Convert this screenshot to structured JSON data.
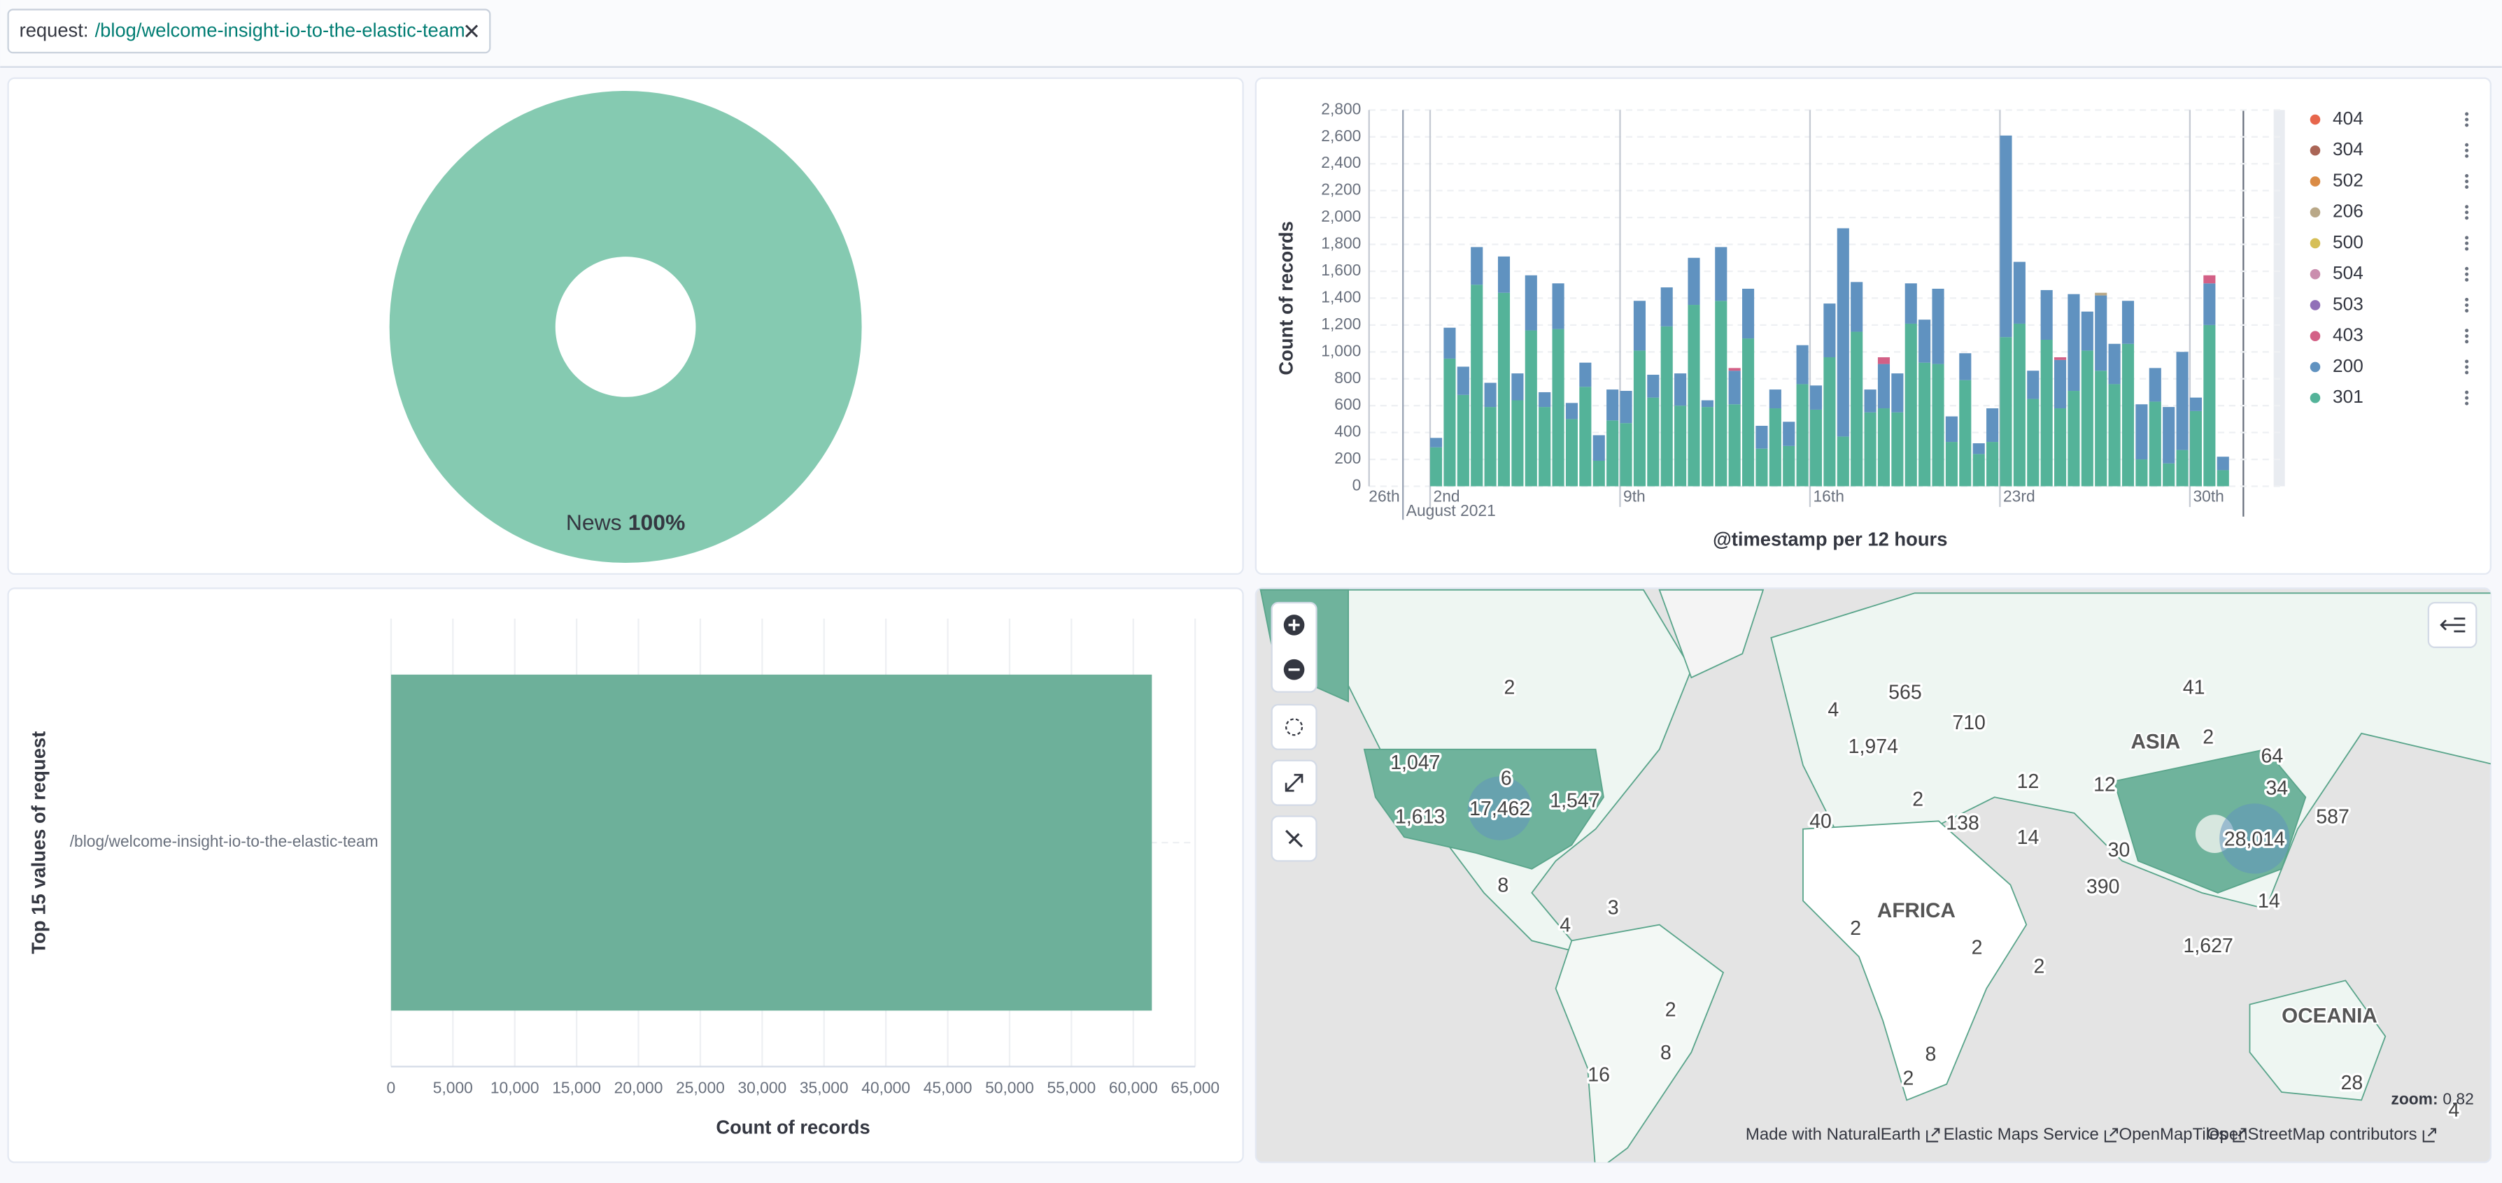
{
  "filter": {
    "field": "request:",
    "value": "/blog/welcome-insight-io-to-the-elastic-team"
  },
  "chart_data": [
    {
      "type": "pie",
      "categories": [
        "News"
      ],
      "values": [
        100
      ],
      "value_labels": [
        "100%"
      ],
      "colors": [
        "#85cab1"
      ]
    },
    {
      "type": "bar",
      "stacked": true,
      "x": [
        "2021-08-02T00:00",
        "2021-08-02T12:00",
        "2021-08-03T00:00",
        "2021-08-03T12:00",
        "2021-08-04T00:00",
        "2021-08-04T12:00",
        "2021-08-05T00:00",
        "2021-08-05T12:00",
        "2021-08-06T00:00",
        "2021-08-06T12:00",
        "2021-08-07T00:00",
        "2021-08-07T12:00",
        "2021-08-08T00:00",
        "2021-08-08T12:00",
        "2021-08-09T00:00",
        "2021-08-09T12:00",
        "2021-08-10T00:00",
        "2021-08-10T12:00",
        "2021-08-11T00:00",
        "2021-08-11T12:00",
        "2021-08-12T00:00",
        "2021-08-12T12:00",
        "2021-08-13T00:00",
        "2021-08-13T12:00",
        "2021-08-14T00:00",
        "2021-08-14T12:00",
        "2021-08-15T00:00",
        "2021-08-15T12:00",
        "2021-08-16T00:00",
        "2021-08-16T12:00",
        "2021-08-17T00:00",
        "2021-08-17T12:00",
        "2021-08-18T00:00",
        "2021-08-18T12:00",
        "2021-08-19T00:00",
        "2021-08-19T12:00",
        "2021-08-20T00:00",
        "2021-08-20T12:00",
        "2021-08-21T00:00",
        "2021-08-21T12:00",
        "2021-08-22T00:00",
        "2021-08-22T12:00",
        "2021-08-23T00:00",
        "2021-08-23T12:00",
        "2021-08-24T00:00",
        "2021-08-24T12:00",
        "2021-08-25T00:00",
        "2021-08-25T12:00",
        "2021-08-26T00:00",
        "2021-08-26T12:00",
        "2021-08-27T00:00",
        "2021-08-27T12:00",
        "2021-08-28T00:00",
        "2021-08-28T12:00",
        "2021-08-29T00:00",
        "2021-08-29T12:00",
        "2021-08-30T00:00",
        "2021-08-30T12:00",
        "2021-08-31T00:00"
      ],
      "xlim": [
        "2021-07-30T18:00",
        "2021-09-02T12:00"
      ],
      "xticks": [
        {
          "value": "2021-08-02",
          "label": "2nd"
        },
        {
          "value": "2021-08-09",
          "label": "9th"
        },
        {
          "value": "2021-08-16",
          "label": "16th"
        },
        {
          "value": "2021-08-23",
          "label": "23rd"
        },
        {
          "value": "2021-08-30",
          "label": "30th"
        }
      ],
      "x_month_label": {
        "value": "2021-08-01",
        "label": "August 2021"
      },
      "x_edge_label": "26th",
      "ylim": [
        0,
        2800
      ],
      "yticks": [
        0,
        200,
        400,
        600,
        800,
        {
          "value": 1000,
          "label": "1,000"
        },
        {
          "value": 1200,
          "label": "1,200"
        },
        {
          "value": 1400,
          "label": "1,400"
        },
        {
          "value": 1600,
          "label": "1,600"
        },
        {
          "value": 1800,
          "label": "1,800"
        },
        {
          "value": 2000,
          "label": "2,000"
        },
        {
          "value": 2200,
          "label": "2,200"
        },
        {
          "value": 2400,
          "label": "2,400"
        },
        {
          "value": 2600,
          "label": "2,600"
        },
        {
          "value": 2800,
          "label": "2,800"
        }
      ],
      "xlabel": "@timestamp per 12 hours",
      "ylabel": "Count of records",
      "grid": true,
      "legend": "right",
      "series": [
        {
          "name": "404",
          "color": "#e7664c",
          "values": [
            0,
            0,
            0,
            0,
            0,
            0,
            0,
            0,
            0,
            0,
            0,
            0,
            0,
            0,
            0,
            0,
            0,
            0,
            0,
            0,
            0,
            0,
            0,
            0,
            0,
            0,
            0,
            0,
            0,
            0,
            0,
            0,
            0,
            0,
            0,
            0,
            0,
            0,
            0,
            0,
            0,
            0,
            0,
            0,
            0,
            0,
            0,
            0,
            0,
            0,
            0,
            0,
            0,
            0,
            0,
            0,
            0,
            0,
            0
          ]
        },
        {
          "name": "304",
          "color": "#aa6556",
          "values": [
            0,
            0,
            0,
            0,
            0,
            0,
            0,
            0,
            0,
            0,
            0,
            0,
            0,
            0,
            0,
            0,
            0,
            0,
            0,
            0,
            0,
            0,
            0,
            0,
            0,
            0,
            0,
            0,
            0,
            0,
            0,
            0,
            0,
            0,
            0,
            0,
            0,
            0,
            0,
            0,
            0,
            0,
            0,
            0,
            0,
            0,
            0,
            0,
            0,
            0,
            0,
            0,
            0,
            0,
            0,
            0,
            0,
            0,
            0
          ]
        },
        {
          "name": "502",
          "color": "#da8b45",
          "values": [
            0,
            0,
            0,
            0,
            0,
            0,
            0,
            0,
            0,
            0,
            0,
            0,
            0,
            0,
            0,
            0,
            0,
            0,
            0,
            0,
            0,
            0,
            0,
            0,
            0,
            0,
            0,
            0,
            0,
            0,
            0,
            0,
            0,
            0,
            0,
            0,
            0,
            0,
            0,
            0,
            0,
            0,
            0,
            0,
            0,
            0,
            0,
            0,
            0,
            0,
            0,
            0,
            0,
            0,
            0,
            0,
            0,
            0,
            0
          ]
        },
        {
          "name": "206",
          "color": "#b9a888",
          "values": [
            0,
            0,
            0,
            0,
            0,
            0,
            0,
            0,
            0,
            0,
            0,
            0,
            0,
            0,
            0,
            0,
            0,
            0,
            0,
            0,
            0,
            0,
            0,
            0,
            0,
            0,
            0,
            0,
            0,
            0,
            0,
            0,
            0,
            0,
            0,
            0,
            0,
            0,
            0,
            0,
            0,
            0,
            0,
            0,
            0,
            0,
            0,
            0,
            0,
            20,
            0,
            0,
            0,
            0,
            0,
            0,
            0,
            0,
            0
          ]
        },
        {
          "name": "500",
          "color": "#d6bf57",
          "values": [
            0,
            0,
            0,
            0,
            0,
            0,
            0,
            0,
            0,
            0,
            0,
            0,
            0,
            0,
            0,
            0,
            0,
            0,
            0,
            0,
            0,
            0,
            0,
            0,
            0,
            0,
            0,
            0,
            0,
            0,
            0,
            0,
            0,
            0,
            0,
            0,
            0,
            0,
            0,
            0,
            0,
            0,
            0,
            0,
            0,
            0,
            0,
            0,
            0,
            0,
            0,
            0,
            0,
            0,
            0,
            0,
            0,
            0,
            0
          ]
        },
        {
          "name": "504",
          "color": "#ca8eae",
          "values": [
            0,
            0,
            0,
            0,
            0,
            0,
            0,
            0,
            0,
            0,
            0,
            0,
            0,
            0,
            0,
            0,
            0,
            0,
            0,
            0,
            0,
            0,
            0,
            0,
            0,
            0,
            0,
            0,
            0,
            0,
            0,
            0,
            0,
            0,
            0,
            0,
            0,
            0,
            0,
            0,
            0,
            0,
            0,
            0,
            0,
            0,
            0,
            0,
            0,
            0,
            0,
            0,
            0,
            0,
            0,
            0,
            0,
            0,
            0
          ]
        },
        {
          "name": "503",
          "color": "#9170b8",
          "values": [
            0,
            0,
            0,
            0,
            0,
            0,
            0,
            0,
            0,
            0,
            0,
            0,
            0,
            0,
            0,
            0,
            0,
            0,
            0,
            0,
            0,
            0,
            0,
            0,
            0,
            0,
            0,
            0,
            0,
            0,
            0,
            0,
            0,
            0,
            0,
            0,
            0,
            0,
            0,
            0,
            0,
            0,
            0,
            0,
            0,
            0,
            0,
            0,
            0,
            0,
            0,
            0,
            0,
            0,
            0,
            0,
            0,
            0,
            0
          ]
        },
        {
          "name": "403",
          "color": "#d36086",
          "values": [
            0,
            0,
            0,
            0,
            0,
            0,
            0,
            0,
            0,
            0,
            0,
            0,
            0,
            0,
            0,
            0,
            0,
            0,
            0,
            0,
            0,
            0,
            20,
            0,
            0,
            0,
            0,
            0,
            0,
            0,
            0,
            0,
            0,
            50,
            0,
            0,
            0,
            0,
            0,
            0,
            0,
            0,
            0,
            0,
            0,
            0,
            20,
            0,
            0,
            0,
            0,
            0,
            0,
            0,
            0,
            0,
            0,
            60,
            0
          ]
        },
        {
          "name": "200",
          "color": "#6092c0",
          "values": [
            70,
            230,
            210,
            280,
            180,
            270,
            200,
            410,
            110,
            340,
            120,
            180,
            190,
            230,
            240,
            370,
            170,
            290,
            240,
            350,
            50,
            400,
            250,
            370,
            170,
            140,
            180,
            290,
            180,
            400,
            1550,
            370,
            170,
            330,
            290,
            300,
            320,
            560,
            190,
            200,
            80,
            250,
            1500,
            460,
            210,
            370,
            360,
            720,
            290,
            560,
            300,
            320,
            410,
            250,
            420,
            730,
            100,
            310,
            100
          ]
        },
        {
          "name": "301",
          "color": "#54b399",
          "values": [
            290,
            950,
            680,
            1500,
            590,
            1440,
            640,
            1160,
            590,
            1170,
            500,
            740,
            190,
            490,
            470,
            1010,
            660,
            1190,
            600,
            1350,
            590,
            1380,
            610,
            1100,
            280,
            580,
            300,
            760,
            570,
            960,
            370,
            1150,
            550,
            580,
            550,
            1210,
            920,
            910,
            330,
            790,
            240,
            330,
            1110,
            1210,
            650,
            1090,
            580,
            710,
            1010,
            860,
            760,
            1060,
            200,
            630,
            170,
            270,
            560,
            1200,
            120
          ]
        }
      ]
    },
    {
      "type": "bar",
      "horizontal": true,
      "categories": [
        "/blog/welcome-insight-io-to-the-elastic-team"
      ],
      "values": [
        61500
      ],
      "color": "#6db09a",
      "xlim": [
        0,
        65000
      ],
      "xticks": [
        0,
        {
          "value": 5000,
          "label": "5,000"
        },
        {
          "value": 10000,
          "label": "10,000"
        },
        {
          "value": 15000,
          "label": "15,000"
        },
        {
          "value": 20000,
          "label": "20,000"
        },
        {
          "value": 25000,
          "label": "25,000"
        },
        {
          "value": 30000,
          "label": "30,000"
        },
        {
          "value": 35000,
          "label": "35,000"
        },
        {
          "value": 40000,
          "label": "40,000"
        },
        {
          "value": 45000,
          "label": "45,000"
        },
        {
          "value": 50000,
          "label": "50,000"
        },
        {
          "value": 55000,
          "label": "55,000"
        },
        {
          "value": 60000,
          "label": "60,000"
        },
        {
          "value": 65000,
          "label": "65,000"
        }
      ],
      "xlabel": "Count of records",
      "ylabel": "Top 15 values of request",
      "grid": true
    }
  ],
  "map": {
    "labels": [
      "2",
      "4",
      "565",
      "710",
      "41",
      "1,974",
      "2",
      "1,047",
      "6",
      "17,462",
      "1,547",
      "1,613",
      "12",
      "12",
      "64",
      "34",
      "587",
      "2",
      "40",
      "138",
      "14",
      "28,014",
      "30",
      "390",
      "8",
      "4",
      "3",
      "2",
      "2",
      "2",
      "14",
      "1,627",
      "2",
      "8",
      "8",
      "16",
      "2",
      "28",
      "4"
    ],
    "region_labels": [
      "ASIA",
      "AFRICA",
      "OCEANIA"
    ],
    "zoom_label": "zoom:",
    "zoom": "0.82",
    "attribution": [
      "Made with NaturalEarth",
      "Elastic Maps Service",
      "OpenMapTiles",
      "OpenStreetMap contributors"
    ]
  }
}
